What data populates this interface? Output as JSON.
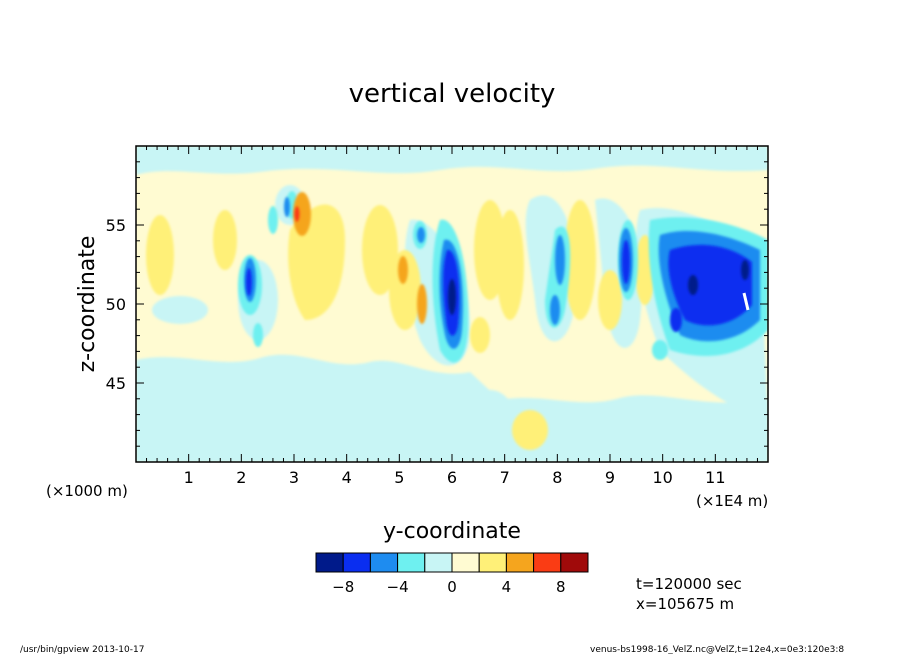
{
  "chart_data": {
    "type": "heatmap",
    "title": "vertical velocity",
    "xlabel": "y-coordinate",
    "ylabel": "z-coordinate",
    "x_unit_left": "(×1000 m)",
    "x_unit_right": "(×1E4 m)",
    "xlim": [
      0,
      120000
    ],
    "ylim": [
      40000,
      60000
    ],
    "x_ticks": [
      1,
      2,
      3,
      4,
      5,
      6,
      7,
      8,
      9,
      10,
      11
    ],
    "y_ticks": [
      45,
      50,
      55
    ],
    "colorbar": {
      "levels": [
        -10,
        -8,
        -6,
        -4,
        -2,
        0,
        2,
        4,
        6,
        8,
        10
      ],
      "tick_labels": [
        "−8",
        "−4",
        "0",
        "4",
        "8"
      ],
      "tick_values": [
        -8,
        -4,
        0,
        4,
        8
      ],
      "colors": [
        "#001a8a",
        "#0a2ef0",
        "#1e8cf0",
        "#6ef0f0",
        "#c8f5f5",
        "#fffbd2",
        "#fff078",
        "#f5a51e",
        "#fa3c14",
        "#a00a0a"
      ]
    },
    "background_value_color": "#fffbd2",
    "features": [
      {
        "y": 22000,
        "z": 51000,
        "value": -7
      },
      {
        "y": 30500,
        "z": 55700,
        "value": 5
      },
      {
        "y": 30500,
        "z": 56000,
        "value": 8
      },
      {
        "y": 50500,
        "z": 52000,
        "value": 5
      },
      {
        "y": 54200,
        "z": 50000,
        "value": 5
      },
      {
        "y": 56500,
        "z": 50500,
        "value": -7
      },
      {
        "y": 56500,
        "z": 50000,
        "value": -9
      },
      {
        "y": 80000,
        "z": 50000,
        "value": -5
      },
      {
        "y": 92500,
        "z": 52000,
        "value": -7
      },
      {
        "y": 106000,
        "z": 51000,
        "value": -8
      },
      {
        "y": 113000,
        "z": 51000,
        "value": -8
      },
      {
        "y": 106500,
        "z": 51500,
        "value": -10
      }
    ]
  },
  "annotations": {
    "time": "t=120000 sec",
    "xpos": "x=105675 m"
  },
  "footer": {
    "left": "/usr/bin/gpview  2013-10-17",
    "right": "venus-bs1998-16_VelZ.nc@VelZ,t=12e4,x=0e3:120e3:8"
  }
}
